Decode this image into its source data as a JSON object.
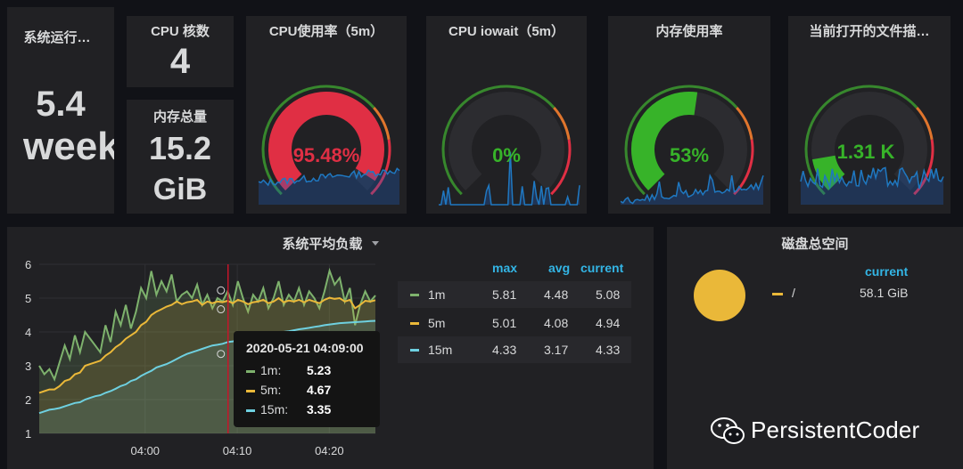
{
  "uptime": {
    "title": "系统运行…",
    "value": "5.4",
    "unit": "week"
  },
  "cpu_cores": {
    "title": "CPU 核数",
    "value": "4"
  },
  "mem_total": {
    "title": "内存总量",
    "value": "15.2",
    "unit": "GiB"
  },
  "gauges": [
    {
      "title": "CPU使用率（5m）",
      "value": "95.48%",
      "fraction": 0.9548,
      "color": "#e02f44"
    },
    {
      "title": "CPU iowait（5m）",
      "value": "0%",
      "fraction": 0.0,
      "color": "#37872d"
    },
    {
      "title": "内存使用率",
      "value": "53%",
      "fraction": 0.53,
      "color": "#37b329"
    },
    {
      "title": "当前打开的文件描…",
      "value": "1.31 K",
      "fraction": 0.13,
      "color": "#37b329"
    }
  ],
  "load_panel": {
    "title": "系统平均负载",
    "legend_headers": [
      "max",
      "avg",
      "current"
    ],
    "legend_rows": [
      {
        "name": "1m",
        "color": "#7eb26d",
        "max": "5.81",
        "avg": "4.48",
        "current": "5.08"
      },
      {
        "name": "5m",
        "color": "#eab839",
        "max": "5.01",
        "avg": "4.08",
        "current": "4.94"
      },
      {
        "name": "15m",
        "color": "#6ed0e0",
        "max": "4.33",
        "avg": "3.17",
        "current": "4.33"
      }
    ],
    "tooltip": {
      "time": "2020-05-21 04:09:00",
      "rows": [
        {
          "name": "1m:",
          "value": "5.23",
          "color": "#7eb26d"
        },
        {
          "name": "5m:",
          "value": "4.67",
          "color": "#eab839"
        },
        {
          "name": "15m:",
          "value": "3.35",
          "color": "#6ed0e0"
        }
      ]
    }
  },
  "disk_panel": {
    "title": "磁盘总空间",
    "legend_header": "current",
    "legend_rows": [
      {
        "name": "/",
        "value": "58.1 GiB",
        "color": "#eab839"
      }
    ]
  },
  "chart_data": {
    "type": "line",
    "title": "系统平均负载",
    "x_ticks": [
      "04:00",
      "04:10",
      "04:20"
    ],
    "y_ticks": [
      "1",
      "2",
      "3",
      "4",
      "5",
      "6"
    ],
    "ylim": [
      1,
      6
    ],
    "xlim_minutes": [
      -11.5,
      25
    ],
    "hover_minute": 9,
    "series": [
      {
        "name": "1m",
        "color": "#7eb26d",
        "values": [
          3.0,
          2.75,
          2.9,
          2.6,
          3.1,
          3.6,
          3.2,
          3.9,
          3.4,
          4.0,
          3.8,
          3.6,
          3.4,
          4.2,
          3.7,
          4.6,
          4.2,
          4.8,
          4.1,
          4.6,
          5.3,
          5.0,
          5.8,
          5.1,
          5.5,
          5.2,
          5.7,
          4.9,
          5.1,
          5.2,
          5.0,
          5.4,
          4.8,
          5.1,
          4.7,
          5.0,
          4.9,
          5.2,
          4.8,
          5.5,
          5.0,
          4.6,
          5.1,
          4.9,
          5.3,
          4.7,
          5.0,
          5.5,
          4.8,
          5.1,
          4.9,
          5.3,
          4.8,
          5.2,
          5.0,
          4.7,
          5.2,
          5.81,
          5.4,
          5.6,
          4.9,
          5.3,
          4.2,
          4.8,
          5.2,
          4.9,
          5.08
        ]
      },
      {
        "name": "5m",
        "color": "#eab839",
        "values": [
          2.2,
          2.25,
          2.3,
          2.3,
          2.4,
          2.55,
          2.6,
          2.75,
          2.8,
          3.0,
          3.05,
          3.1,
          3.15,
          3.3,
          3.4,
          3.55,
          3.65,
          3.8,
          3.9,
          4.0,
          4.2,
          4.3,
          4.5,
          4.6,
          4.67,
          4.75,
          4.8,
          4.9,
          4.82,
          4.88,
          4.9,
          4.95,
          4.8,
          4.9,
          4.85,
          4.9,
          4.88,
          4.92,
          4.85,
          4.95,
          4.9,
          4.82,
          4.88,
          4.9,
          4.95,
          4.85,
          4.9,
          5.0,
          4.88,
          4.93,
          4.9,
          4.95,
          4.88,
          4.95,
          4.9,
          4.85,
          4.95,
          5.01,
          4.98,
          5.0,
          4.9,
          4.95,
          4.7,
          4.8,
          4.92,
          4.9,
          4.94
        ]
      },
      {
        "name": "15m",
        "color": "#6ed0e0",
        "values": [
          1.6,
          1.65,
          1.7,
          1.72,
          1.75,
          1.8,
          1.85,
          1.9,
          1.92,
          2.0,
          2.05,
          2.1,
          2.13,
          2.2,
          2.25,
          2.32,
          2.4,
          2.45,
          2.55,
          2.6,
          2.7,
          2.78,
          2.85,
          2.95,
          3.0,
          3.05,
          3.12,
          3.2,
          3.28,
          3.35,
          3.4,
          3.45,
          3.5,
          3.55,
          3.6,
          3.62,
          3.65,
          3.7,
          3.72,
          3.75,
          3.8,
          3.82,
          3.85,
          3.88,
          3.9,
          3.92,
          3.95,
          3.98,
          4.0,
          4.02,
          4.05,
          4.08,
          4.1,
          4.12,
          4.15,
          4.17,
          4.2,
          4.22,
          4.24,
          4.26,
          4.27,
          4.28,
          4.29,
          4.3,
          4.31,
          4.32,
          4.33
        ]
      }
    ]
  }
}
